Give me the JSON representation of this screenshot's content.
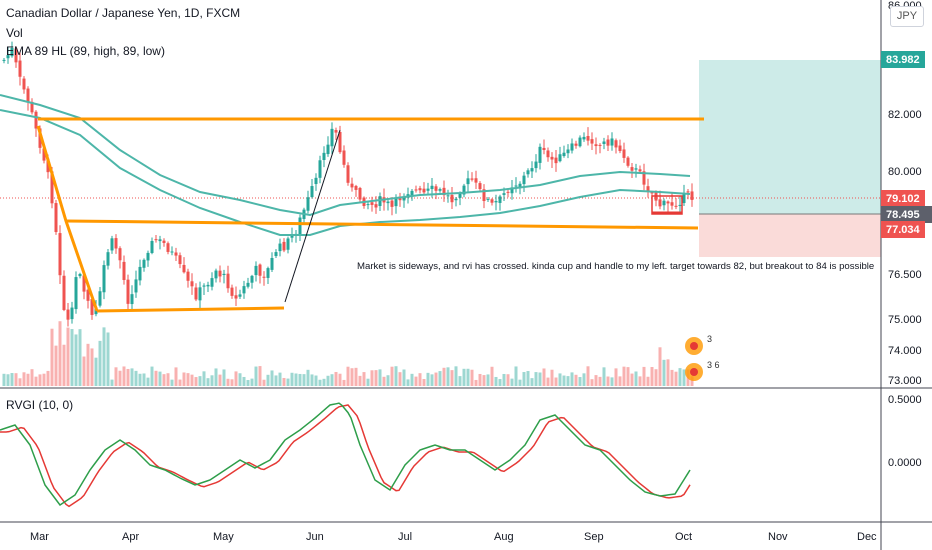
{
  "header": {
    "title": "Canadian Dollar / Japanese Yen, 1D, FXCM",
    "vol_label": "Vol",
    "ema_label": "EMA 89 HL (89, high, 89, low)",
    "currency": "JPY"
  },
  "rvgi": {
    "label": "RVGI (10, 0)"
  },
  "annotation": "Market is sideways, and rvi has crossed. kinda cup and handle to my left. target towards 82, but breakout to 84 is possible",
  "event_badges": [
    "3",
    "3 6"
  ],
  "colors": {
    "up": "#26a69a",
    "down": "#ef5350",
    "ema": "#4db6a9",
    "trend": "#ff9800",
    "profit_zone": "#cdebe8",
    "loss_zone": "#fadbd9",
    "rvgi_main": "#2e9e4a",
    "rvgi_signal": "#e53935"
  },
  "chart_data": {
    "type": "candlestick",
    "x_tick_labels": [
      "Mar",
      "Apr",
      "May",
      "Jun",
      "Jul",
      "Aug",
      "Sep",
      "Oct",
      "Nov",
      "Dec"
    ],
    "price_axis_ticks": [
      "86.000",
      "83.982",
      "82.000",
      "80.000",
      "79.102",
      "78.495",
      "77.034",
      "76.500",
      "75.000",
      "74.000",
      "73.000"
    ],
    "rvgi_axis_ticks": [
      "0.5000",
      "0.0000"
    ],
    "price_labels": {
      "target": "83.982",
      "last": "79.102",
      "entry": "78.495",
      "stop": "77.034"
    },
    "position": {
      "target": 83.982,
      "entry": 78.495,
      "stop": 77.034
    },
    "resistance_level": 81.8,
    "support_level": 78.0,
    "price_range": [
      73,
      86
    ],
    "rvgi_range": [
      -0.75,
      0.55
    ]
  }
}
